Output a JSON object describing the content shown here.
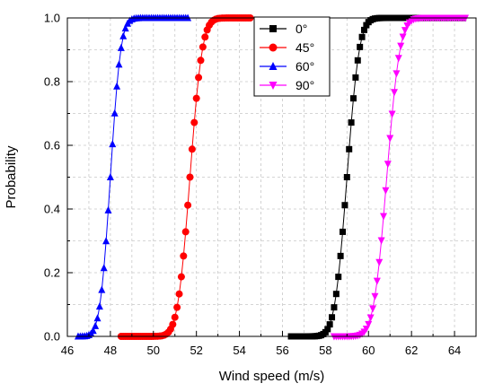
{
  "chart_data": {
    "type": "line",
    "title": "",
    "xlabel": "Wind speed (m/s)",
    "ylabel": "Probability",
    "xlim": [
      46,
      65
    ],
    "ylim": [
      0,
      1.0
    ],
    "xticks": [
      46,
      48,
      50,
      52,
      54,
      56,
      58,
      60,
      62,
      64
    ],
    "yticks": [
      0.0,
      0.2,
      0.4,
      0.6,
      0.8,
      1.0
    ],
    "xtick_labels": [
      "46",
      "48",
      "50",
      "52",
      "54",
      "56",
      "58",
      "60",
      "62",
      "64"
    ],
    "ytick_labels": [
      "0.0",
      "0.2",
      "0.4",
      "0.6",
      "0.8",
      "1.0"
    ],
    "grid": true,
    "legend_position": "top-center-right",
    "series": [
      {
        "name": "0°",
        "color": "#000000",
        "marker": "square",
        "x_start": 56.4,
        "x_end": 64.4,
        "mu": 59.0,
        "sigma": 0.45
      },
      {
        "name": "45°",
        "color": "#ff0000",
        "marker": "circle",
        "x_start": 48.5,
        "x_end": 54.5,
        "mu": 51.7,
        "sigma": 0.45
      },
      {
        "name": "60°",
        "color": "#0000ff",
        "marker": "triangle-up",
        "x_start": 46.5,
        "x_end": 51.6,
        "mu": 48.0,
        "sigma": 0.38
      },
      {
        "name": "90°",
        "color": "#ff00ff",
        "marker": "triangle-down",
        "x_start": 58.4,
        "x_end": 64.5,
        "mu": 60.85,
        "sigma": 0.48
      }
    ]
  }
}
